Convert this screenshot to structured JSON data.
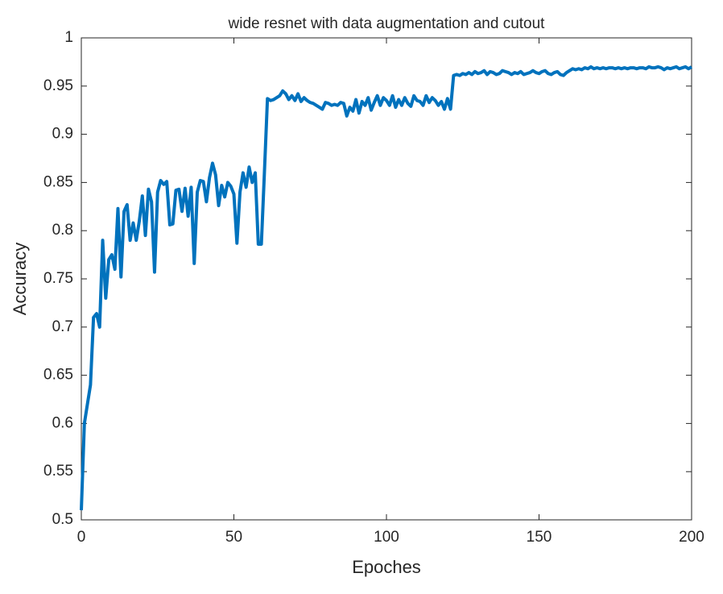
{
  "chart_data": {
    "type": "line",
    "title": "wide resnet with data augmentation and cutout",
    "xlabel": "Epoches",
    "ylabel": "Accuracy",
    "xlim": [
      0,
      200
    ],
    "xticks": [
      0,
      50,
      100,
      150,
      200
    ],
    "ylim": [
      0.5,
      1
    ],
    "yticks": [
      0.5,
      0.55,
      0.6,
      0.65,
      0.7,
      0.75,
      0.8,
      0.85,
      0.9,
      0.95,
      1
    ],
    "series": [
      {
        "color": "#0072bd",
        "x": [
          0,
          1,
          2,
          3,
          4,
          5,
          6,
          7,
          8,
          9,
          10,
          11,
          12,
          13,
          14,
          15,
          16,
          17,
          18,
          19,
          20,
          21,
          22,
          23,
          24,
          25,
          26,
          27,
          28,
          29,
          30,
          31,
          32,
          33,
          34,
          35,
          36,
          37,
          38,
          39,
          40,
          41,
          42,
          43,
          44,
          45,
          46,
          47,
          48,
          49,
          50,
          51,
          52,
          53,
          54,
          55,
          56,
          57,
          58,
          59,
          60,
          61,
          62,
          63,
          64,
          65,
          66,
          67,
          68,
          69,
          70,
          71,
          72,
          73,
          74,
          75,
          76,
          77,
          78,
          79,
          80,
          81,
          82,
          83,
          84,
          85,
          86,
          87,
          88,
          89,
          90,
          91,
          92,
          93,
          94,
          95,
          96,
          97,
          98,
          99,
          100,
          101,
          102,
          103,
          104,
          105,
          106,
          107,
          108,
          109,
          110,
          111,
          112,
          113,
          114,
          115,
          116,
          117,
          118,
          119,
          120,
          121,
          122,
          123,
          124,
          125,
          126,
          127,
          128,
          129,
          130,
          131,
          132,
          133,
          134,
          135,
          136,
          137,
          138,
          139,
          140,
          141,
          142,
          143,
          144,
          145,
          146,
          147,
          148,
          149,
          150,
          151,
          152,
          153,
          154,
          155,
          156,
          157,
          158,
          159,
          160,
          161,
          162,
          163,
          164,
          165,
          166,
          167,
          168,
          169,
          170,
          171,
          172,
          173,
          174,
          175,
          176,
          177,
          178,
          179,
          180,
          181,
          182,
          183,
          184,
          185,
          186,
          187,
          188,
          189,
          190,
          191,
          192,
          193,
          194,
          195,
          196,
          197,
          198,
          199,
          200
        ],
        "values": [
          0.51,
          0.6,
          0.62,
          0.64,
          0.71,
          0.714,
          0.7,
          0.79,
          0.73,
          0.77,
          0.775,
          0.76,
          0.823,
          0.752,
          0.82,
          0.827,
          0.79,
          0.808,
          0.79,
          0.81,
          0.836,
          0.795,
          0.843,
          0.83,
          0.757,
          0.84,
          0.852,
          0.848,
          0.851,
          0.806,
          0.807,
          0.842,
          0.843,
          0.82,
          0.844,
          0.815,
          0.845,
          0.766,
          0.84,
          0.852,
          0.851,
          0.83,
          0.855,
          0.87,
          0.858,
          0.826,
          0.847,
          0.835,
          0.85,
          0.846,
          0.838,
          0.787,
          0.84,
          0.86,
          0.845,
          0.866,
          0.85,
          0.86,
          0.786,
          0.786,
          0.86,
          0.937,
          0.935,
          0.936,
          0.938,
          0.94,
          0.945,
          0.942,
          0.936,
          0.94,
          0.935,
          0.942,
          0.934,
          0.938,
          0.935,
          0.933,
          0.932,
          0.93,
          0.928,
          0.926,
          0.933,
          0.932,
          0.93,
          0.931,
          0.93,
          0.933,
          0.932,
          0.919,
          0.928,
          0.924,
          0.936,
          0.922,
          0.934,
          0.93,
          0.938,
          0.925,
          0.933,
          0.94,
          0.93,
          0.938,
          0.935,
          0.93,
          0.94,
          0.928,
          0.936,
          0.93,
          0.938,
          0.932,
          0.929,
          0.94,
          0.935,
          0.934,
          0.93,
          0.94,
          0.933,
          0.938,
          0.935,
          0.93,
          0.934,
          0.926,
          0.937,
          0.926,
          0.961,
          0.962,
          0.961,
          0.963,
          0.962,
          0.964,
          0.962,
          0.965,
          0.963,
          0.964,
          0.966,
          0.962,
          0.965,
          0.964,
          0.962,
          0.963,
          0.966,
          0.965,
          0.964,
          0.962,
          0.964,
          0.963,
          0.965,
          0.962,
          0.963,
          0.964,
          0.966,
          0.964,
          0.963,
          0.965,
          0.966,
          0.963,
          0.962,
          0.964,
          0.965,
          0.962,
          0.961,
          0.964,
          0.966,
          0.968,
          0.967,
          0.968,
          0.967,
          0.969,
          0.968,
          0.97,
          0.968,
          0.969,
          0.968,
          0.969,
          0.968,
          0.969,
          0.969,
          0.968,
          0.969,
          0.968,
          0.969,
          0.968,
          0.969,
          0.969,
          0.968,
          0.969,
          0.969,
          0.968,
          0.97,
          0.969,
          0.969,
          0.97,
          0.969,
          0.967,
          0.969,
          0.968,
          0.969,
          0.97,
          0.968,
          0.969,
          0.97,
          0.968,
          0.97
        ]
      }
    ]
  }
}
